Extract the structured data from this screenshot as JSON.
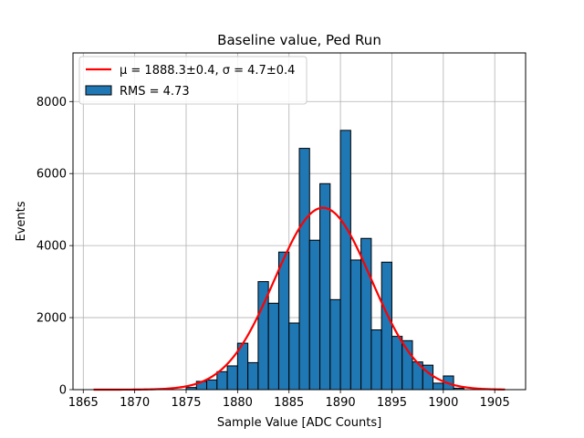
{
  "chart_data": {
    "type": "bar",
    "title": "Baseline value, Ped Run",
    "xlabel": "Sample Value [ADC Counts]",
    "ylabel": "Events",
    "xlim": [
      1864,
      1908
    ],
    "ylim": [
      0,
      9350
    ],
    "xticks": [
      1865,
      1870,
      1875,
      1880,
      1885,
      1890,
      1895,
      1900,
      1905
    ],
    "yticks": [
      0,
      2000,
      4000,
      6000,
      8000
    ],
    "grid": true,
    "legend_position": "top-left",
    "series": [
      {
        "name": "RMS = 4.73",
        "kind": "histogram",
        "bin_width": 1,
        "bins_start": [
          1875,
          1876,
          1877,
          1878,
          1879,
          1880,
          1881,
          1882,
          1883,
          1884,
          1885,
          1886,
          1887,
          1888,
          1889,
          1890,
          1891,
          1892,
          1893,
          1894,
          1895,
          1896,
          1897,
          1898,
          1899,
          1900,
          1901
        ],
        "counts": [
          60,
          230,
          270,
          500,
          660,
          1290,
          750,
          3000,
          2400,
          3820,
          1850,
          6700,
          4150,
          5720,
          2500,
          7200,
          3600,
          4200,
          1660,
          3540,
          1480,
          1360,
          770,
          680,
          180,
          380,
          40
        ],
        "color": "#1f77b4",
        "edge_color": "#000000"
      },
      {
        "name": "μ = 1888.3±0.4, σ = 4.7±0.4",
        "kind": "gaussian-fit",
        "mu": 1888.3,
        "sigma": 4.7,
        "amplitude": 5050,
        "x_range": [
          1866,
          1906
        ],
        "color": "#ff0000"
      }
    ]
  }
}
